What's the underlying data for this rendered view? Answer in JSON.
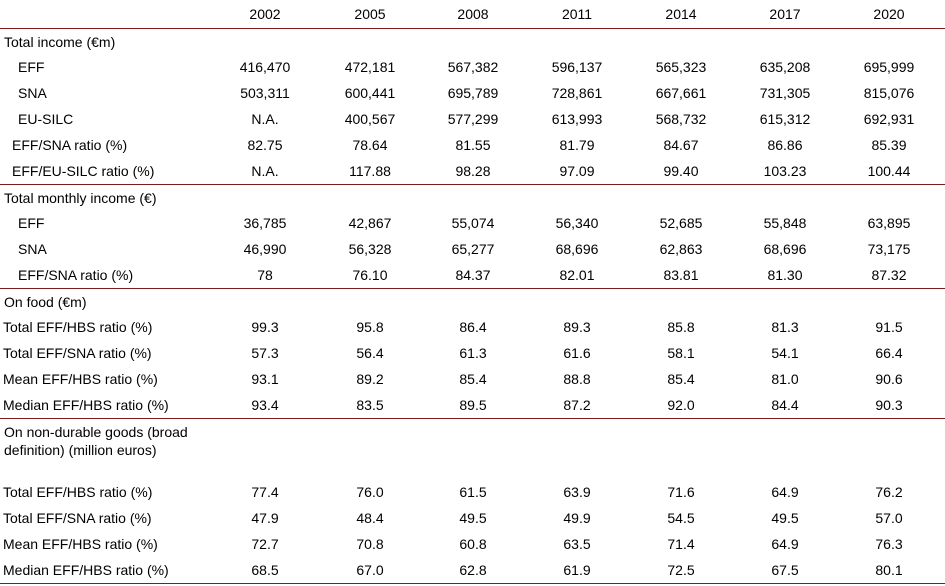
{
  "years": [
    "2002",
    "2005",
    "2008",
    "2011",
    "2014",
    "2017",
    "2020"
  ],
  "sections": [
    {
      "title": "Total income (€m)",
      "rows": [
        {
          "label": "EFF",
          "indent": 18,
          "values": [
            "416,470",
            "472,181",
            "567,382",
            "596,137",
            "565,323",
            "635,208",
            "695,999"
          ]
        },
        {
          "label": "SNA",
          "indent": 18,
          "values": [
            "503,311",
            "600,441",
            "695,789",
            "728,861",
            "667,661",
            "731,305",
            "815,076"
          ]
        },
        {
          "label": "EU-SILC",
          "indent": 18,
          "values": [
            "N.A.",
            "400,567",
            "577,299",
            "613,993",
            "568,732",
            "615,312",
            "692,931"
          ]
        },
        {
          "label": "EFF/SNA ratio (%)",
          "indent": 12,
          "values": [
            "82.75",
            "78.64",
            "81.55",
            "81.79",
            "84.67",
            "86.86",
            "85.39"
          ]
        },
        {
          "label": "EFF/EU-SILC ratio (%)",
          "indent": 12,
          "values": [
            "N.A.",
            "117.88",
            "98.28",
            "97.09",
            "99.40",
            "103.23",
            "100.44"
          ]
        }
      ]
    },
    {
      "title": "Total monthly income (€)",
      "rows": [
        {
          "label": "EFF",
          "indent": 18,
          "values": [
            "36,785",
            "42,867",
            "55,074",
            "56,340",
            "52,685",
            "55,848",
            "63,895"
          ]
        },
        {
          "label": "SNA",
          "indent": 18,
          "values": [
            "46,990",
            "56,328",
            "65,277",
            "68,696",
            "62,863",
            "68,696",
            "73,175"
          ]
        },
        {
          "label": "EFF/SNA ratio (%)",
          "indent": 18,
          "values": [
            "78",
            "76.10",
            "84.37",
            "82.01",
            "83.81",
            "81.30",
            "87.32"
          ]
        }
      ]
    },
    {
      "title": "On food (€m)",
      "rows": [
        {
          "label": "Total  EFF/HBS ratio  (%)",
          "indent": 3,
          "values": [
            "99.3",
            "95.8",
            "86.4",
            "89.3",
            "85.8",
            "81.3",
            "91.5"
          ]
        },
        {
          "label": "Total EFF/SNA ratio (%)",
          "indent": 3,
          "values": [
            "57.3",
            "56.4",
            "61.3",
            "61.6",
            "58.1",
            "54.1",
            "66.4"
          ]
        },
        {
          "label": "Mean  EFF/HBS ratio  (%)",
          "indent": 3,
          "values": [
            "93.1",
            "89.2",
            "85.4",
            "88.8",
            "85.4",
            "81.0",
            "90.6"
          ]
        },
        {
          "label": "Median EFF/HBS ratio  (%)",
          "indent": 3,
          "values": [
            "93.4",
            "83.5",
            "89.5",
            "87.2",
            "92.0",
            "84.4",
            "90.3"
          ]
        }
      ]
    },
    {
      "title": "On non-durable goods (broad definition) (million euros)",
      "rows": [
        {
          "label": "Total  EFF/HBS ratio  (%)",
          "indent": 3,
          "values": [
            "77.4",
            "76.0",
            "61.5",
            "63.9",
            "71.6",
            "64.9",
            "76.2"
          ]
        },
        {
          "label": "Total  EFF/SNA ratio  (%)",
          "indent": 3,
          "values": [
            "47.9",
            "48.4",
            "49.5",
            "49.9",
            "54.5",
            "49.5",
            "57.0"
          ]
        },
        {
          "label": "Mean  EFF/HBS ratio  (%)",
          "indent": 3,
          "values": [
            "72.7",
            "70.8",
            "60.8",
            "63.5",
            "71.4",
            "64.9",
            "76.3"
          ]
        },
        {
          "label": "Median  EFF/HBS ratio  (%)",
          "indent": 3,
          "values": [
            "68.5",
            "67.0",
            "62.8",
            "61.9",
            "72.5",
            "67.5",
            "80.1"
          ]
        }
      ]
    }
  ]
}
